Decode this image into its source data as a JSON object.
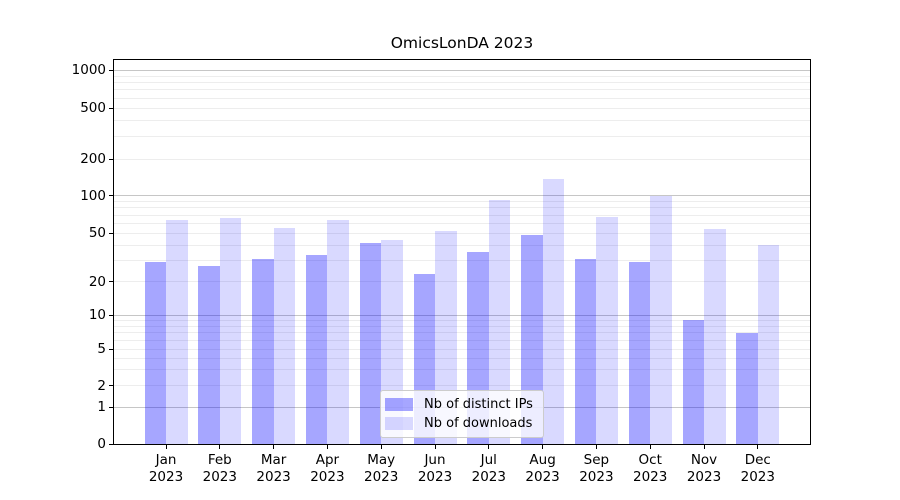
{
  "title": "OmicsLonDA 2023",
  "chart_data": {
    "type": "bar",
    "title": "OmicsLonDA 2023",
    "xlabel": "",
    "ylabel": "",
    "yscale": "symlog-like (log decades above 1, compressed linear 0-1)",
    "yticks": [
      0,
      1,
      2,
      5,
      10,
      20,
      50,
      100,
      200,
      500,
      1000
    ],
    "ylim": [
      0,
      1100
    ],
    "grid": true,
    "legend_position": "lower center",
    "categories": [
      "Jan 2023",
      "Feb 2023",
      "Mar 2023",
      "Apr 2023",
      "May 2023",
      "Jun 2023",
      "Jul 2023",
      "Aug 2023",
      "Sep 2023",
      "Oct 2023",
      "Nov 2023",
      "Dec 2023"
    ],
    "series": [
      {
        "name": "Nb of distinct IPs",
        "color": "rgba(0,0,255,0.35)",
        "values": [
          29,
          27,
          31,
          33,
          42,
          23,
          35,
          48,
          31,
          29,
          9,
          7
        ]
      },
      {
        "name": "Nb of downloads",
        "color": "rgba(0,0,255,0.15)",
        "values": [
          64,
          66,
          55,
          64,
          44,
          52,
          92,
          138,
          67,
          100,
          54,
          40
        ]
      }
    ]
  }
}
